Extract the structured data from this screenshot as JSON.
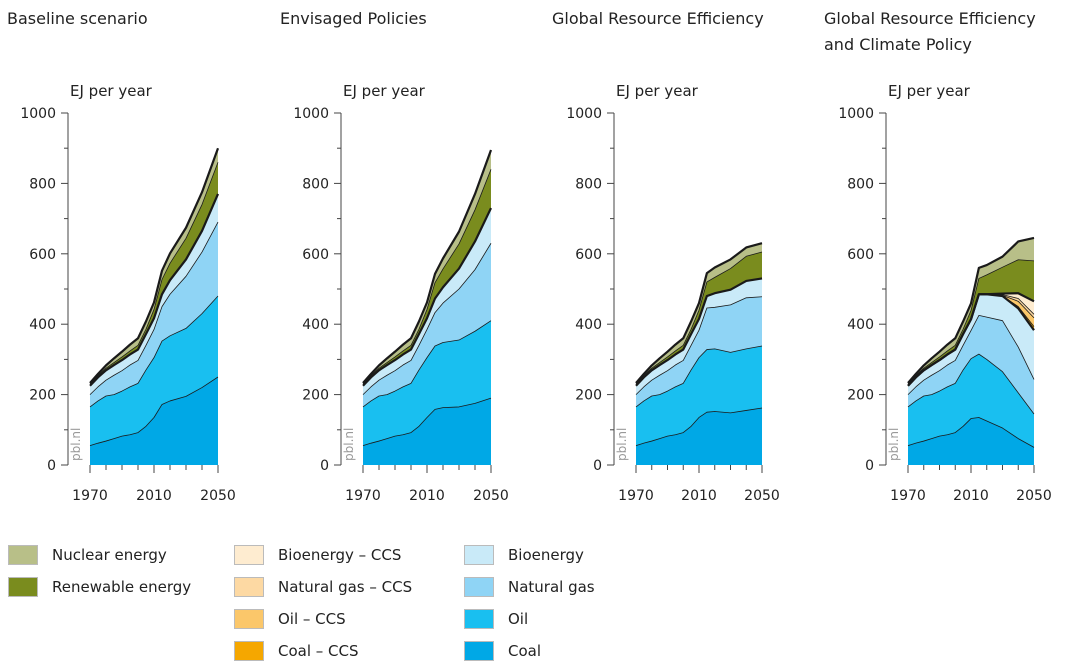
{
  "chart_data": [
    {
      "type": "area",
      "title": "Baseline scenario",
      "ylabel": "EJ per year",
      "ylim": [
        0,
        1000
      ],
      "yticks": [
        0,
        200,
        400,
        600,
        800,
        1000
      ],
      "xticks": [
        1970,
        2010,
        2050
      ],
      "x": [
        1970,
        1975,
        1980,
        1985,
        1990,
        1995,
        2000,
        2005,
        2010,
        2015,
        2020,
        2030,
        2040,
        2050
      ],
      "series": [
        {
          "name": "Coal",
          "values": [
            55,
            62,
            68,
            75,
            82,
            86,
            92,
            110,
            135,
            172,
            182,
            195,
            220,
            250
          ]
        },
        {
          "name": "Oil",
          "values": [
            110,
            120,
            128,
            125,
            128,
            136,
            140,
            160,
            170,
            180,
            185,
            193,
            210,
            230
          ]
        },
        {
          "name": "Natural gas",
          "values": [
            35,
            40,
            45,
            55,
            58,
            62,
            65,
            70,
            80,
            98,
            118,
            148,
            175,
            210
          ]
        },
        {
          "name": "Bioenergy",
          "values": [
            25,
            27,
            28,
            29,
            30,
            30,
            31,
            32,
            32,
            35,
            40,
            48,
            60,
            80
          ]
        },
        {
          "name": "Renewable energy",
          "values": [
            5,
            5,
            6,
            7,
            9,
            10,
            12,
            14,
            25,
            42,
            48,
            60,
            75,
            90
          ]
        },
        {
          "name": "Nuclear energy",
          "values": [
            3,
            5,
            8,
            12,
            15,
            18,
            20,
            22,
            20,
            25,
            28,
            30,
            35,
            40
          ]
        }
      ]
    },
    {
      "type": "area",
      "title": "Envisaged Policies",
      "ylabel": "EJ per year",
      "ylim": [
        0,
        1000
      ],
      "yticks": [
        0,
        200,
        400,
        600,
        800,
        1000
      ],
      "xticks": [
        1970,
        2010,
        2050
      ],
      "x": [
        1970,
        1975,
        1980,
        1985,
        1990,
        1995,
        2000,
        2005,
        2010,
        2015,
        2020,
        2030,
        2040,
        2050
      ],
      "series": [
        {
          "name": "Coal",
          "values": [
            55,
            62,
            68,
            75,
            82,
            86,
            92,
            110,
            135,
            158,
            163,
            165,
            175,
            190
          ]
        },
        {
          "name": "Oil",
          "values": [
            110,
            120,
            128,
            125,
            128,
            136,
            140,
            160,
            170,
            180,
            185,
            190,
            205,
            220
          ]
        },
        {
          "name": "Natural gas",
          "values": [
            35,
            40,
            45,
            55,
            58,
            62,
            65,
            70,
            80,
            95,
            112,
            145,
            175,
            220
          ]
        },
        {
          "name": "Bioenergy",
          "values": [
            25,
            27,
            28,
            29,
            30,
            30,
            31,
            32,
            32,
            40,
            45,
            58,
            80,
            100
          ]
        },
        {
          "name": "Renewable energy",
          "values": [
            5,
            5,
            6,
            7,
            9,
            10,
            12,
            14,
            25,
            45,
            52,
            70,
            90,
            110
          ]
        },
        {
          "name": "Nuclear energy",
          "values": [
            3,
            5,
            8,
            12,
            15,
            18,
            20,
            22,
            20,
            25,
            30,
            35,
            45,
            55
          ]
        }
      ]
    },
    {
      "type": "area",
      "title": "Global Resource Efficiency",
      "ylabel": "EJ per year",
      "ylim": [
        0,
        1000
      ],
      "yticks": [
        0,
        200,
        400,
        600,
        800,
        1000
      ],
      "xticks": [
        1970,
        2010,
        2050
      ],
      "x": [
        1970,
        1975,
        1980,
        1985,
        1990,
        1995,
        2000,
        2005,
        2010,
        2015,
        2020,
        2030,
        2040,
        2050
      ],
      "series": [
        {
          "name": "Coal",
          "values": [
            55,
            62,
            68,
            75,
            82,
            86,
            92,
            110,
            135,
            150,
            152,
            148,
            155,
            162
          ]
        },
        {
          "name": "Oil",
          "values": [
            110,
            120,
            128,
            125,
            128,
            136,
            140,
            160,
            170,
            178,
            178,
            172,
            175,
            176
          ]
        },
        {
          "name": "Natural gas",
          "values": [
            35,
            40,
            45,
            55,
            58,
            62,
            65,
            70,
            78,
            118,
            118,
            135,
            145,
            140
          ]
        },
        {
          "name": "Bioenergy",
          "values": [
            25,
            27,
            28,
            29,
            30,
            30,
            31,
            32,
            32,
            34,
            40,
            43,
            48,
            52
          ]
        },
        {
          "name": "Renewable energy",
          "values": [
            5,
            5,
            6,
            7,
            9,
            10,
            12,
            14,
            25,
            40,
            45,
            60,
            70,
            75
          ]
        },
        {
          "name": "Nuclear energy",
          "values": [
            3,
            5,
            8,
            12,
            15,
            18,
            20,
            22,
            20,
            25,
            28,
            26,
            25,
            25
          ]
        }
      ]
    },
    {
      "type": "area",
      "title": "Global Resource Efficiency and Climate Policy",
      "title_lines": [
        "Global Resource Efficiency",
        "and Climate Policy"
      ],
      "ylabel": "EJ per year",
      "ylim": [
        0,
        1000
      ],
      "yticks": [
        0,
        200,
        400,
        600,
        800,
        1000
      ],
      "xticks": [
        1970,
        2010,
        2050
      ],
      "x": [
        1970,
        1975,
        1980,
        1985,
        1990,
        1995,
        2000,
        2005,
        2010,
        2015,
        2020,
        2030,
        2040,
        2050
      ],
      "series": [
        {
          "name": "Coal",
          "values": [
            55,
            62,
            68,
            75,
            82,
            86,
            92,
            110,
            132,
            135,
            125,
            105,
            75,
            50
          ]
        },
        {
          "name": "Oil",
          "values": [
            110,
            120,
            128,
            125,
            128,
            136,
            140,
            160,
            170,
            180,
            175,
            160,
            130,
            95
          ]
        },
        {
          "name": "Natural gas",
          "values": [
            35,
            40,
            45,
            55,
            58,
            62,
            65,
            70,
            80,
            110,
            120,
            145,
            130,
            98
          ]
        },
        {
          "name": "Bioenergy",
          "values": [
            25,
            27,
            28,
            29,
            30,
            30,
            31,
            32,
            32,
            60,
            65,
            70,
            110,
            140
          ]
        },
        {
          "name": "Coal – CCS",
          "values": [
            0,
            0,
            0,
            0,
            0,
            0,
            0,
            0,
            0,
            0,
            0,
            0,
            5,
            10
          ]
        },
        {
          "name": "Oil – CCS",
          "values": [
            0,
            0,
            0,
            0,
            0,
            0,
            0,
            0,
            0,
            0,
            0,
            2,
            15,
            25
          ]
        },
        {
          "name": "Natural gas – CCS",
          "values": [
            0,
            0,
            0,
            0,
            0,
            0,
            0,
            0,
            0,
            0,
            0,
            2,
            8,
            10
          ]
        },
        {
          "name": "Bioenergy – CCS",
          "values": [
            0,
            0,
            0,
            0,
            0,
            0,
            0,
            0,
            0,
            0,
            0,
            3,
            15,
            37
          ]
        },
        {
          "name": "Renewable energy",
          "values": [
            5,
            5,
            6,
            7,
            9,
            10,
            12,
            14,
            25,
            45,
            55,
            75,
            95,
            115
          ]
        },
        {
          "name": "Nuclear energy",
          "values": [
            3,
            5,
            8,
            12,
            15,
            18,
            20,
            22,
            20,
            30,
            28,
            30,
            52,
            65
          ]
        }
      ]
    }
  ],
  "watermark": "pbl.nl",
  "colors": {
    "Coal": "#00a8e6",
    "Oil": "#19bff0",
    "Natural gas": "#8fd4f5",
    "Bioenergy": "#c9eaf8",
    "Coal – CCS": "#f5a700",
    "Oil – CCS": "#fbc76a",
    "Natural gas – CCS": "#fdd9a3",
    "Bioenergy – CCS": "#feecd0",
    "Renewable energy": "#7a8c1e",
    "Nuclear energy": "#b8bf88"
  },
  "legend": [
    {
      "label": "Nuclear energy",
      "color": "#b8bf88"
    },
    {
      "label": "Renewable energy",
      "color": "#7a8c1e"
    },
    {
      "label": "Bioenergy – CCS",
      "color": "#feecd0"
    },
    {
      "label": "Natural gas – CCS",
      "color": "#fdd9a3"
    },
    {
      "label": "Oil – CCS",
      "color": "#fbc76a"
    },
    {
      "label": "Coal – CCS",
      "color": "#f5a700"
    },
    {
      "label": "Bioenergy",
      "color": "#c9eaf8"
    },
    {
      "label": "Natural gas",
      "color": "#8fd4f5"
    },
    {
      "label": "Oil",
      "color": "#19bff0"
    },
    {
      "label": "Coal",
      "color": "#00a8e6"
    }
  ]
}
